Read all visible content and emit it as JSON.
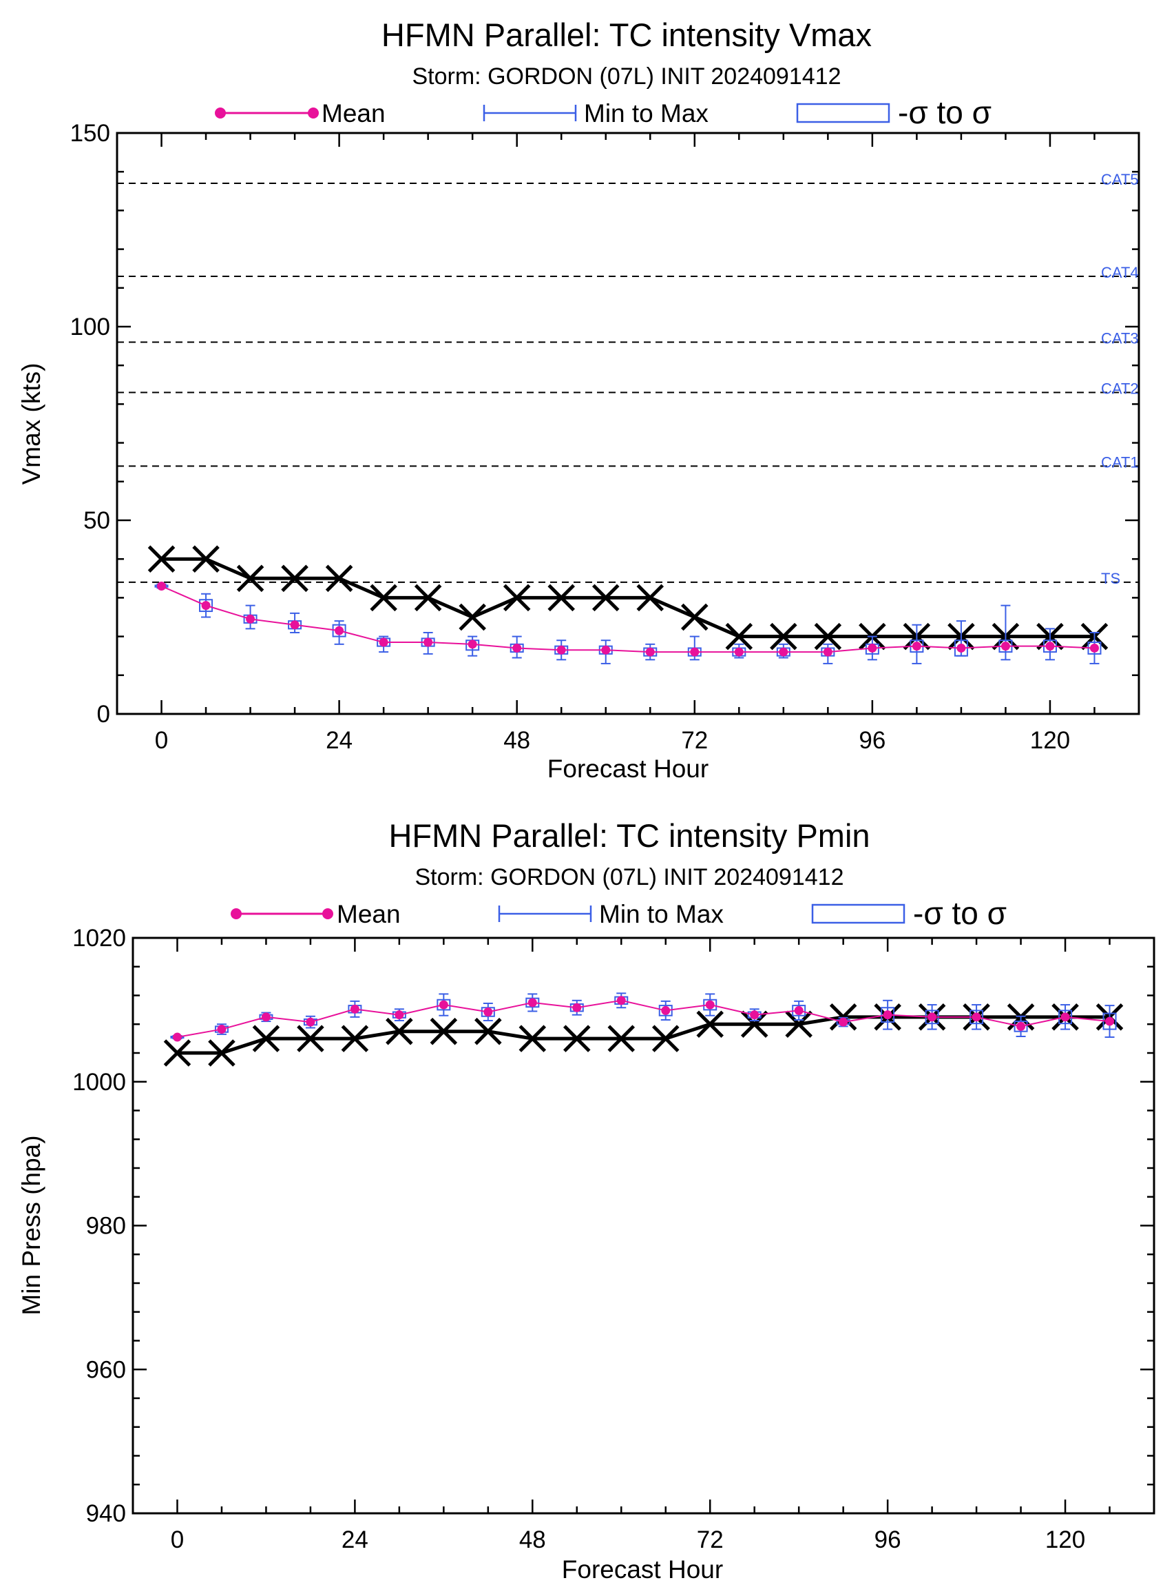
{
  "colors": {
    "mean": "#e8119a",
    "minmax": "#3b5fe6",
    "sigma": "#3b5fe6",
    "best_track": "#000000",
    "reference": "#000000",
    "reference_label": "#3b5fe6"
  },
  "chart_data": [
    {
      "type": "line",
      "title": "HFMN Parallel: TC intensity Vmax",
      "subtitle": "Storm: GORDON (07L) INIT 2024091412",
      "xlabel": "Forecast Hour",
      "ylabel": "Vmax (kts)",
      "xlim": [
        -6,
        132
      ],
      "ylim": [
        0,
        150
      ],
      "xticks": [
        0,
        24,
        48,
        72,
        96,
        120
      ],
      "xtick_labels": [
        "0",
        "24",
        "48",
        "72",
        "96",
        "120"
      ],
      "yticks": [
        0,
        50,
        100,
        150
      ],
      "ytick_labels": [
        "0",
        "50",
        "100",
        "150"
      ],
      "ytick_minor": 10,
      "legend": {
        "placement": "top",
        "mean": "Mean",
        "minmax": "Min to Max",
        "sigma": "-σ to σ"
      },
      "reference_lines": [
        {
          "label": "CAT5",
          "y": 137
        },
        {
          "label": "CAT4",
          "y": 113
        },
        {
          "label": "CAT3",
          "y": 96
        },
        {
          "label": "CAT2",
          "y": 83
        },
        {
          "label": "CAT1",
          "y": 64
        },
        {
          "label": "TS",
          "y": 34
        }
      ],
      "x": [
        0,
        6,
        12,
        18,
        24,
        30,
        36,
        42,
        48,
        54,
        60,
        66,
        72,
        78,
        84,
        90,
        96,
        102,
        108,
        114,
        120,
        126
      ],
      "series": [
        {
          "values": [
            33,
            28,
            24.5,
            23,
            21.5,
            18.5,
            18.5,
            18,
            17,
            16.5,
            16.5,
            16,
            16,
            16,
            16,
            16,
            17,
            17.5,
            17,
            17.5,
            17.5,
            17
          ]
        },
        {
          "min": [
            32.5,
            25,
            22,
            21,
            18,
            16,
            15.5,
            15,
            14.5,
            14,
            13,
            14,
            14,
            14.5,
            14.5,
            13,
            14,
            13,
            15,
            14,
            14,
            13
          ]
        },
        {
          "max": [
            33.5,
            31,
            28,
            26,
            24,
            20,
            21,
            20,
            20,
            19,
            19,
            18,
            20,
            18,
            18,
            18,
            20,
            23,
            24,
            28,
            22,
            21
          ]
        },
        {
          "sigma_low": [
            32.8,
            26.5,
            23.5,
            22,
            20,
            17.5,
            17.5,
            16.5,
            16,
            15.5,
            15.5,
            15,
            15,
            15,
            15,
            15,
            15.5,
            16,
            15,
            16,
            16,
            15.5
          ]
        },
        {
          "sigma_high": [
            33.2,
            29.5,
            25.5,
            24,
            23,
            19.5,
            19.5,
            19,
            18,
            17.5,
            17.5,
            17,
            17,
            17,
            17,
            17,
            18,
            19,
            19,
            19,
            19,
            18.5
          ]
        },
        {
          "values": [
            40,
            40,
            35,
            35,
            35,
            30,
            30,
            25,
            30,
            30,
            30,
            30,
            25,
            20,
            20,
            20,
            20,
            20,
            20,
            20,
            20,
            20
          ]
        }
      ]
    },
    {
      "type": "line",
      "title": "HFMN Parallel: TC intensity Pmin",
      "subtitle": "Storm: GORDON (07L) INIT 2024091412",
      "xlabel": "Forecast Hour",
      "ylabel": "Min Press (hpa)",
      "xlim": [
        -6,
        132
      ],
      "ylim": [
        940,
        1020
      ],
      "xticks": [
        0,
        24,
        48,
        72,
        96,
        120
      ],
      "xtick_labels": [
        "0",
        "24",
        "48",
        "72",
        "96",
        "120"
      ],
      "yticks": [
        940,
        960,
        980,
        1000,
        1020
      ],
      "ytick_labels": [
        "940",
        "960",
        "980",
        "1000",
        "1020"
      ],
      "ytick_minor": 4,
      "legend": {
        "placement": "top",
        "mean": "Mean",
        "minmax": "Min to Max",
        "sigma": "-σ to σ"
      },
      "reference_lines": [],
      "x": [
        0,
        6,
        12,
        18,
        24,
        30,
        36,
        42,
        48,
        54,
        60,
        66,
        72,
        78,
        84,
        90,
        96,
        102,
        108,
        114,
        120,
        126
      ],
      "series": [
        {
          "values": [
            1006.2,
            1007.3,
            1009.0,
            1008.3,
            1010.1,
            1009.3,
            1010.7,
            1009.7,
            1011.0,
            1010.3,
            1011.3,
            1009.9,
            1010.7,
            1009.3,
            1009.9,
            1008.3,
            1009.3,
            1009.0,
            1009.0,
            1007.7,
            1009.0,
            1008.4
          ]
        },
        {
          "min": [
            1006.0,
            1006.6,
            1008.4,
            1007.5,
            1009.0,
            1008.5,
            1009.2,
            1008.5,
            1009.8,
            1009.3,
            1010.3,
            1008.6,
            1009.2,
            1008.5,
            1008.6,
            1007.7,
            1007.3,
            1007.3,
            1007.3,
            1006.3,
            1007.3,
            1006.2
          ]
        },
        {
          "max": [
            1006.4,
            1008.0,
            1009.6,
            1009.1,
            1011.2,
            1010.1,
            1012.2,
            1010.9,
            1012.2,
            1011.3,
            1012.3,
            1011.2,
            1012.2,
            1010.1,
            1011.2,
            1008.9,
            1011.3,
            1010.7,
            1010.7,
            1009.1,
            1010.7,
            1010.6
          ]
        },
        {
          "sigma_low": [
            1006.1,
            1006.9,
            1008.7,
            1007.9,
            1009.6,
            1008.9,
            1010.0,
            1009.1,
            1010.4,
            1009.8,
            1010.8,
            1009.2,
            1010.0,
            1008.9,
            1009.2,
            1008.0,
            1008.3,
            1008.1,
            1008.1,
            1007.0,
            1008.1,
            1007.3
          ]
        },
        {
          "sigma_high": [
            1006.3,
            1007.7,
            1009.3,
            1008.7,
            1010.6,
            1009.7,
            1011.4,
            1010.3,
            1011.6,
            1010.8,
            1011.8,
            1010.6,
            1011.4,
            1009.7,
            1010.6,
            1008.6,
            1010.3,
            1009.9,
            1009.9,
            1008.4,
            1009.9,
            1009.5
          ]
        },
        {
          "values": [
            1004,
            1004,
            1006,
            1006,
            1006,
            1007,
            1007,
            1007,
            1006,
            1006,
            1006,
            1006,
            1008,
            1008,
            1008,
            1009,
            1009,
            1009,
            1009,
            1009,
            1009,
            1009
          ]
        }
      ]
    }
  ]
}
